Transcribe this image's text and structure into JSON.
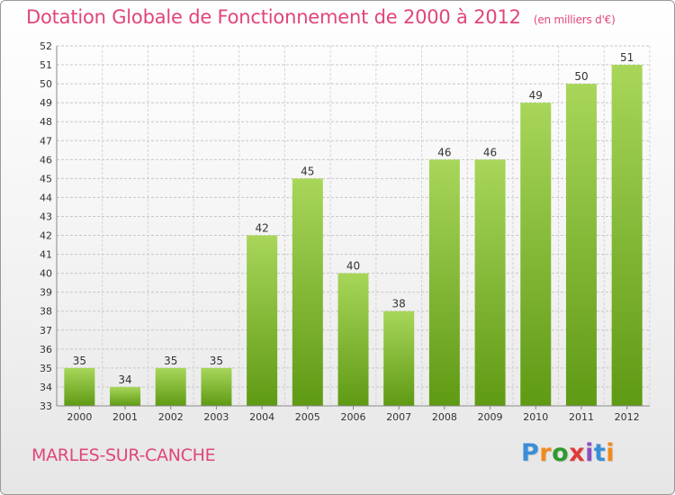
{
  "header": {
    "title": "Dotation Globale de Fonctionnement de 2000 à 2012",
    "subtitle": "(en milliers d'€)"
  },
  "footer": {
    "commune": "MARLES-SUR-CANCHE",
    "logo": [
      "P",
      "r",
      "o",
      "x",
      "i",
      "t",
      "i"
    ],
    "logo_colors": [
      "#3a8ed6",
      "#f08a1c",
      "#2f9a2f",
      "#e23a3a",
      "#8a4fc2",
      "#3a8ed6",
      "#f08a1c"
    ]
  },
  "colors": {
    "bar_top": "#a8d65a",
    "bar_bottom": "#5f9a14",
    "title": "#e0457b"
  },
  "chart_data": {
    "type": "bar",
    "categories": [
      "2000",
      "2001",
      "2002",
      "2003",
      "2004",
      "2005",
      "2006",
      "2007",
      "2008",
      "2009",
      "2010",
      "2011",
      "2012"
    ],
    "values": [
      35,
      34,
      35,
      35,
      42,
      45,
      40,
      38,
      46,
      46,
      49,
      50,
      51
    ],
    "ylim": [
      33,
      52
    ],
    "yticks": [
      33,
      34,
      35,
      36,
      37,
      38,
      39,
      40,
      41,
      42,
      43,
      44,
      45,
      46,
      47,
      48,
      49,
      50,
      51,
      52
    ],
    "grid": true
  }
}
